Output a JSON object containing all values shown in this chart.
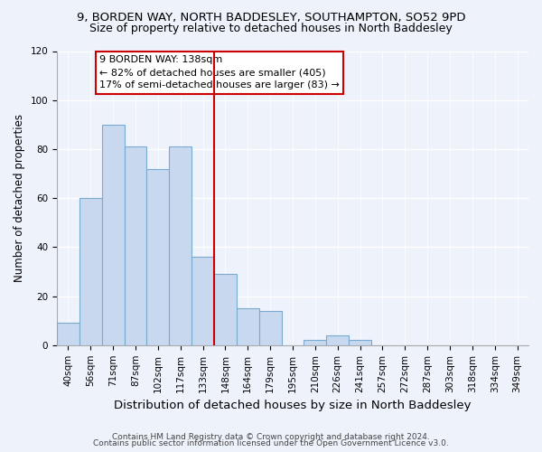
{
  "title1": "9, BORDEN WAY, NORTH BADDESLEY, SOUTHAMPTON, SO52 9PD",
  "title2": "Size of property relative to detached houses in North Baddesley",
  "xlabel": "Distribution of detached houses by size in North Baddesley",
  "ylabel": "Number of detached properties",
  "bar_labels": [
    "40sqm",
    "56sqm",
    "71sqm",
    "87sqm",
    "102sqm",
    "117sqm",
    "133sqm",
    "148sqm",
    "164sqm",
    "179sqm",
    "195sqm",
    "210sqm",
    "226sqm",
    "241sqm",
    "257sqm",
    "272sqm",
    "287sqm",
    "303sqm",
    "318sqm",
    "334sqm",
    "349sqm"
  ],
  "bar_values": [
    9,
    60,
    90,
    81,
    72,
    81,
    36,
    29,
    15,
    14,
    0,
    2,
    4,
    2,
    0,
    0,
    0,
    0,
    0,
    0,
    0
  ],
  "bar_color": "#c8d8ee",
  "bar_edge_color": "#7aaace",
  "subject_line_color": "#cc0000",
  "annotation_title": "9 BORDEN WAY: 138sqm",
  "annotation_line1": "← 82% of detached houses are smaller (405)",
  "annotation_line2": "17% of semi-detached houses are larger (83) →",
  "annotation_box_color": "#ffffff",
  "annotation_box_edge_color": "#cc0000",
  "ylim": [
    0,
    120
  ],
  "yticks": [
    0,
    20,
    40,
    60,
    80,
    100,
    120
  ],
  "footer1": "Contains HM Land Registry data © Crown copyright and database right 2024.",
  "footer2": "Contains public sector information licensed under the Open Government Licence v3.0.",
  "bg_color": "#eef2fb",
  "grid_color": "#ffffff",
  "title1_fontsize": 9.5,
  "title2_fontsize": 9,
  "xlabel_fontsize": 9.5,
  "ylabel_fontsize": 8.5,
  "tick_fontsize": 7.5,
  "annotation_fontsize": 8,
  "footer_fontsize": 6.5
}
